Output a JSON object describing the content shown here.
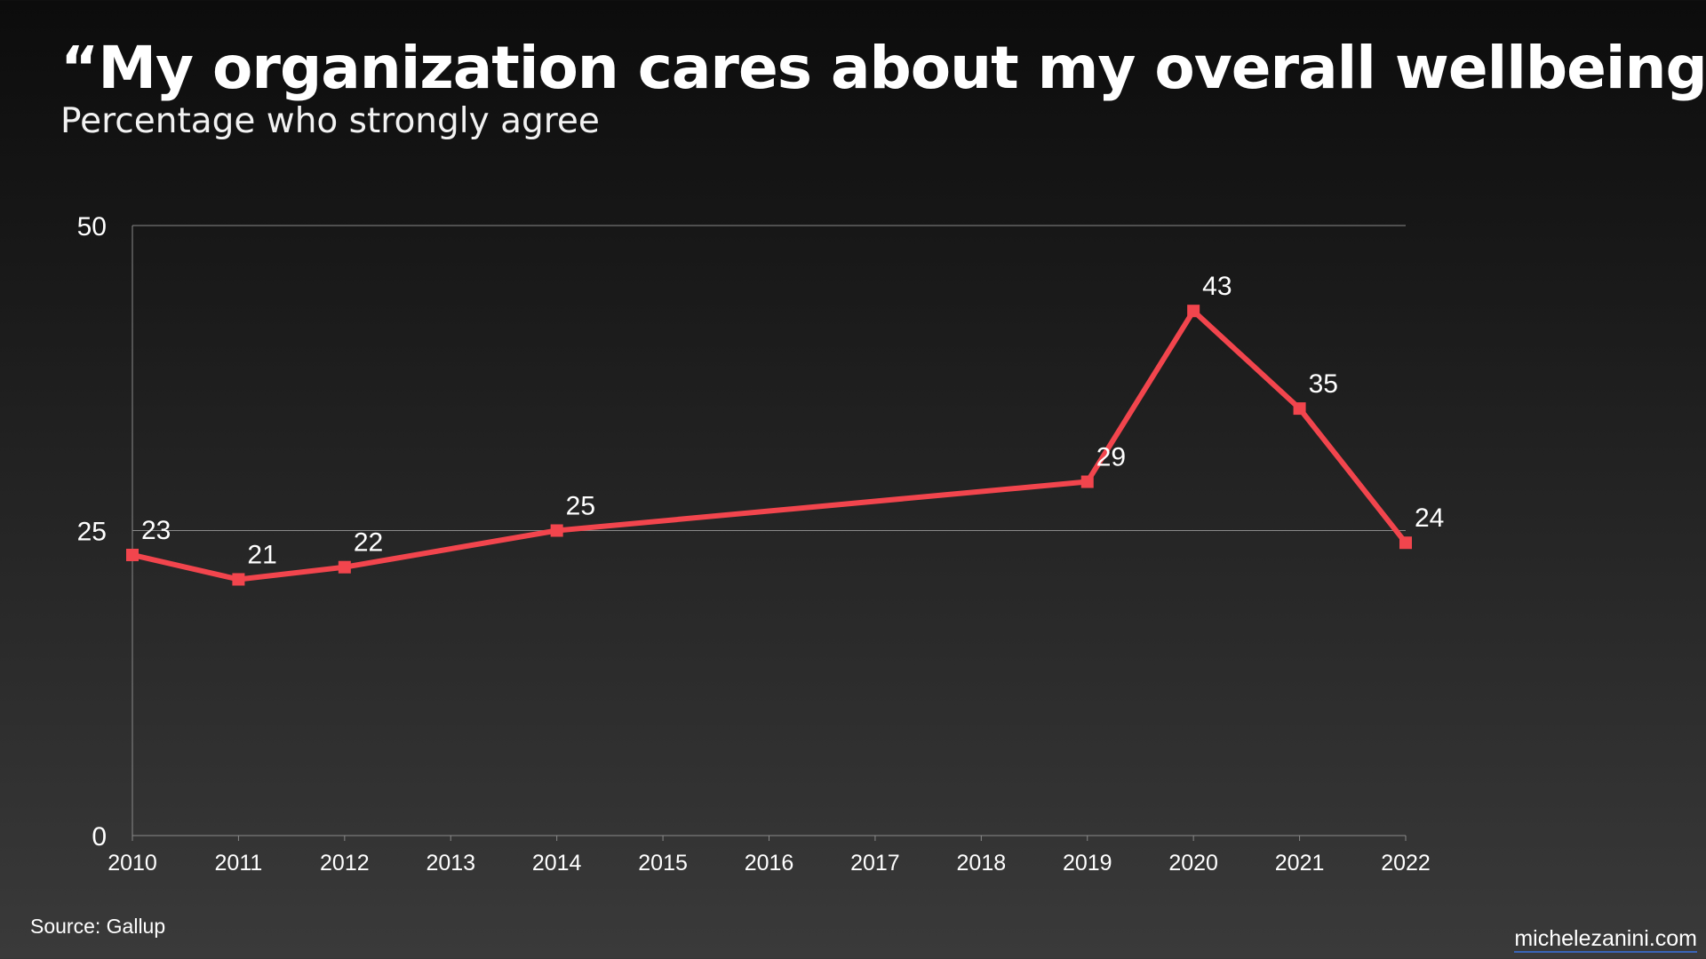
{
  "chart_data": {
    "type": "line",
    "title": "“My organization cares about my overall wellbeing”",
    "subtitle": "Percentage who strongly agree",
    "x_ticks": [
      "2010",
      "2011",
      "2012",
      "2013",
      "2014",
      "2015",
      "2016",
      "2017",
      "2018",
      "2019",
      "2020",
      "2021",
      "2022"
    ],
    "y_ticks": [
      0,
      25,
      50
    ],
    "ylim": [
      0,
      50
    ],
    "xlim": [
      2010,
      2022
    ],
    "grid": "horizontal",
    "line_color": "#f2454d",
    "series": [
      {
        "x": [
          2010,
          2011,
          2012,
          2014,
          2019,
          2020,
          2021,
          2022
        ],
        "values": [
          23,
          21,
          22,
          25,
          29,
          43,
          35,
          24
        ]
      }
    ]
  },
  "footer": {
    "source": "Source: Gallup",
    "credit": "michelezanini.com"
  }
}
